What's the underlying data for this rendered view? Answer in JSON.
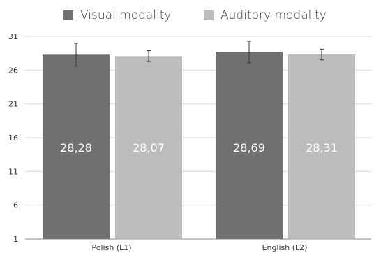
{
  "chart_data": {
    "type": "bar",
    "categories": [
      "Polish (L1)",
      "English (L2)"
    ],
    "series": [
      {
        "name": "Visual modality",
        "values": [
          28.28,
          28.69
        ],
        "labels": [
          "28,28",
          "28,69"
        ],
        "error": [
          1.7,
          1.6
        ],
        "color": "#707070"
      },
      {
        "name": "Auditory modality",
        "values": [
          28.07,
          28.31
        ],
        "labels": [
          "28,07",
          "28,31"
        ],
        "error": [
          0.8,
          0.8
        ],
        "color": "#bcbcbc"
      }
    ],
    "yticks": [
      1,
      6,
      11,
      16,
      21,
      26,
      31
    ],
    "ytick_labels": [
      "1",
      "6",
      "11",
      "16",
      "21",
      "26",
      "31"
    ],
    "ylim": [
      1,
      31
    ],
    "grid": true,
    "legend_position": "top-center",
    "data_label_color": "#ffffff",
    "grid_color": "#d9d9d9",
    "axis_color": "#888888"
  }
}
